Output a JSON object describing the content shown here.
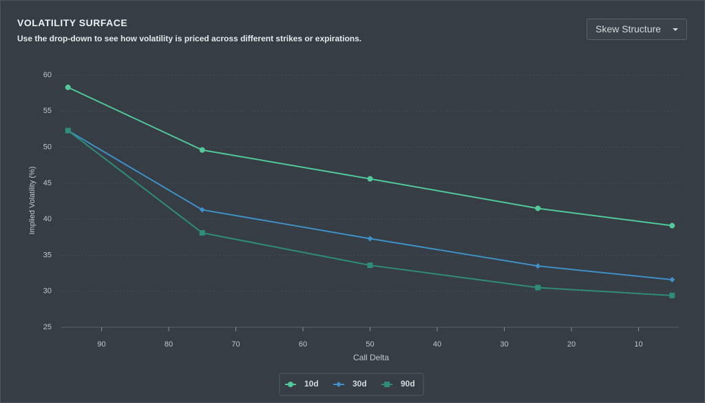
{
  "chart_data": {
    "type": "line",
    "title": "VOLATILITY SURFACE",
    "subtitle": "Use the drop-down to see how volatility is priced across different strikes or expirations.",
    "x_label": "Call Delta",
    "y_label": "Implied Volatility (%)",
    "x": [
      95,
      75,
      50,
      25,
      5
    ],
    "xlim": [
      96,
      4
    ],
    "xticks": [
      90,
      80,
      70,
      60,
      50,
      40,
      30,
      20,
      10
    ],
    "ylim": [
      25,
      60
    ],
    "yticks": [
      25,
      30,
      35,
      40,
      45,
      50,
      55,
      60
    ],
    "grid": true,
    "series": [
      {
        "name": "10d",
        "color": "#52c99b",
        "marker": "circle",
        "values": [
          58.3,
          49.6,
          45.6,
          41.5,
          39.1
        ]
      },
      {
        "name": "30d",
        "color": "#3f90c6",
        "marker": "diamond",
        "values": [
          52.3,
          41.3,
          37.3,
          33.5,
          31.6
        ]
      },
      {
        "name": "90d",
        "color": "#2f8c7a",
        "marker": "square",
        "values": [
          52.3,
          38.1,
          33.6,
          30.5,
          29.4
        ]
      }
    ]
  },
  "controls": {
    "dropdown": "Skew Structure"
  }
}
